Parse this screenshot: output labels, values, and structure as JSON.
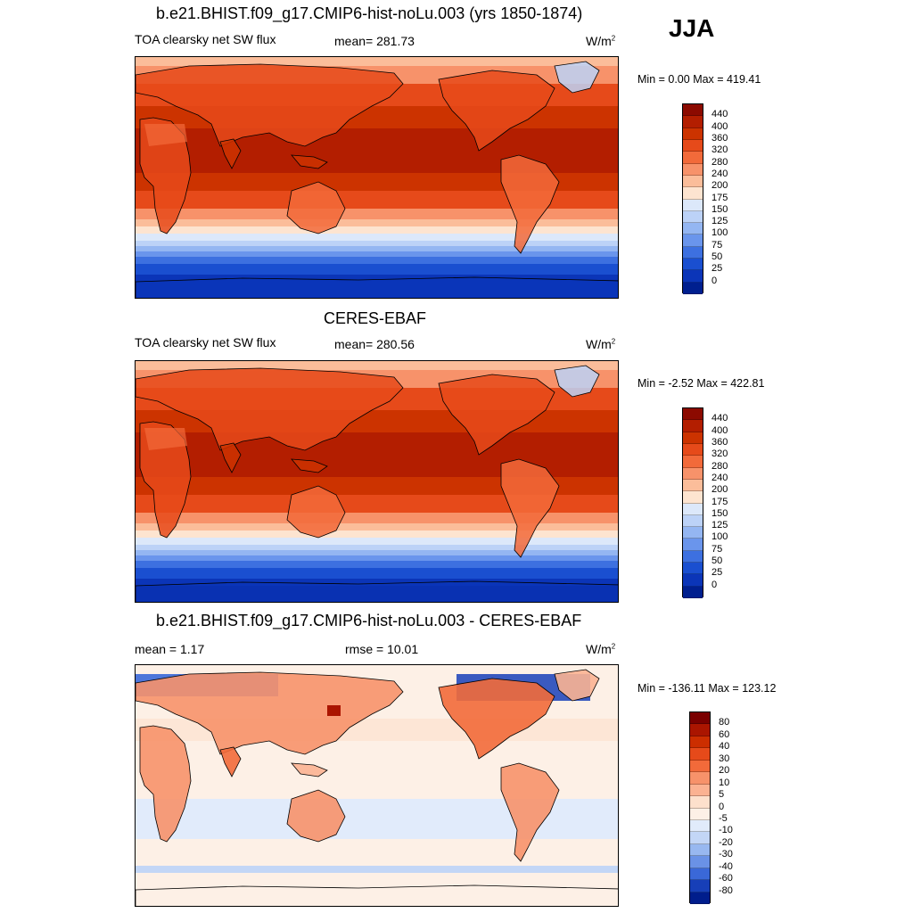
{
  "season": "JJA",
  "panel1": {
    "title": "b.e21.BHIST.f09_g17.CMIP6-hist-noLu.003 (yrs 1850-1874)",
    "variable": "TOA clearsky net SW flux",
    "mean": "mean= 281.73",
    "units": "W/m",
    "units_sup": "2",
    "minmax": "Min =   0.00 Max = 419.41",
    "colorbar_labels": [
      "440",
      "400",
      "360",
      "320",
      "280",
      "240",
      "200",
      "175",
      "150",
      "125",
      "100",
      "75",
      "50",
      "25",
      "0"
    ]
  },
  "panel2": {
    "title": "CERES-EBAF",
    "variable": "TOA clearsky net SW flux",
    "mean": "mean= 280.56",
    "units": "W/m",
    "units_sup": "2",
    "minmax": "Min =  -2.52 Max = 422.81",
    "colorbar_labels": [
      "440",
      "400",
      "360",
      "320",
      "280",
      "240",
      "200",
      "175",
      "150",
      "125",
      "100",
      "75",
      "50",
      "25",
      "0"
    ]
  },
  "panel3": {
    "title": "b.e21.BHIST.f09_g17.CMIP6-hist-noLu.003 - CERES-EBAF",
    "mean": "mean =   1.17",
    "rmse": "rmse =  10.01",
    "units": "W/m",
    "units_sup": "2",
    "minmax": "Min = -136.11 Max = 123.12",
    "colorbar_labels": [
      "80",
      "60",
      "40",
      "30",
      "20",
      "10",
      "5",
      "0",
      "-5",
      "-10",
      "-20",
      "-30",
      "-40",
      "-60",
      "-80"
    ]
  },
  "colors": {
    "abs_scale": [
      "#8c0a00",
      "#b31e00",
      "#cc3300",
      "#e64a1a",
      "#f26a3a",
      "#f7926a",
      "#fbbd9a",
      "#fde4d0",
      "#dce8fa",
      "#bcd2f7",
      "#94b6f2",
      "#6a95ec",
      "#3d70e0",
      "#1a4fd0",
      "#0b35b8",
      "#001f8f"
    ],
    "diff_scale": [
      "#7a0000",
      "#aa1500",
      "#cc2e00",
      "#e64a1a",
      "#f26a3a",
      "#f7926a",
      "#fbb292",
      "#fde0cc",
      "#fdf0e6",
      "#e1ebfb",
      "#c3d6f6",
      "#98b8f0",
      "#6a92e6",
      "#3a68d8",
      "#173fb8",
      "#001d8c"
    ],
    "coast": "#000000"
  }
}
